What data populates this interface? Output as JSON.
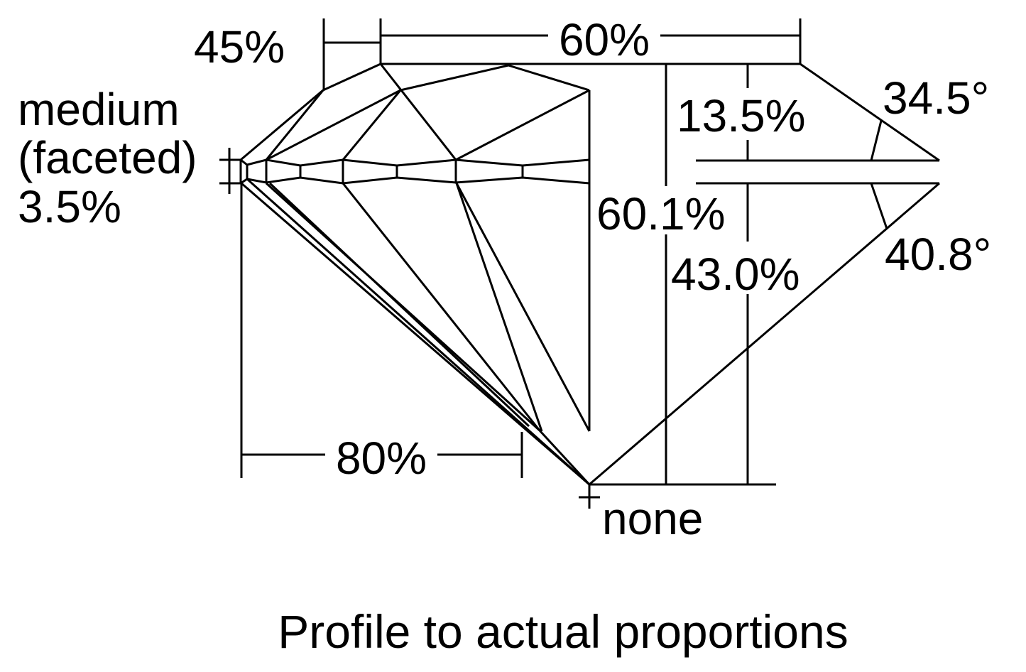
{
  "labels": {
    "crown_angle_top_pct": "45%",
    "table_pct": "60%",
    "girdle_line1": "medium",
    "girdle_line2": "(faceted)",
    "girdle_pct": "3.5%",
    "crown_height_pct": "13.5%",
    "total_depth_pct": "60.1%",
    "pavilion_depth_pct": "43.0%",
    "crown_angle": "34.5°",
    "pavilion_angle": "40.8°",
    "lower_half_pct": "80%",
    "culet": "none"
  },
  "caption": "Profile to actual proportions",
  "colors": {
    "line": "#000000",
    "background": "#ffffff"
  }
}
